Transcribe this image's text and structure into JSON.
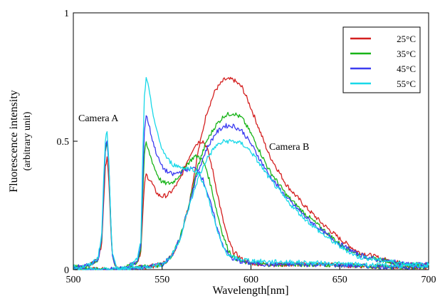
{
  "chart_data": {
    "type": "line",
    "title": "",
    "xlabel": "Wavelength[nm]",
    "ylabel": "Fluorescence intensity",
    "ylabel_sub": "(arbitrary unit)",
    "xlim": [
      500,
      700
    ],
    "ylim": [
      0,
      1
    ],
    "x_ticks": [
      500,
      550,
      600,
      650,
      700
    ],
    "x_tick_labels": [
      "500",
      "550",
      "600",
      "650",
      "700"
    ],
    "y_ticks": [
      0,
      0.5,
      1
    ],
    "y_tick_labels": [
      "0",
      "0.5",
      "1"
    ],
    "grid": false,
    "legend_position": "top-right",
    "annotations": [
      {
        "text": "Camera A",
        "x": 515,
        "y": 0.58
      },
      {
        "text": "Camera B",
        "x": 617,
        "y": 0.47
      }
    ],
    "series": [
      {
        "name": "25°C",
        "color": "#d42020",
        "camera_a": {
          "x": [
            500,
            505,
            510,
            514,
            516,
            517,
            518,
            519,
            520,
            521,
            522,
            524,
            526,
            528,
            530,
            533,
            536,
            538,
            539,
            540,
            541,
            542,
            544,
            546,
            548,
            550,
            553,
            556,
            560,
            564,
            568,
            571,
            573,
            575,
            578,
            581,
            584,
            587,
            590,
            595,
            600,
            610,
            620,
            640,
            660,
            680,
            700
          ],
          "y": [
            0.01,
            0.01,
            0.02,
            0.04,
            0.1,
            0.25,
            0.4,
            0.44,
            0.35,
            0.18,
            0.05,
            0.01,
            0.0,
            0.0,
            0.01,
            0.02,
            0.03,
            0.07,
            0.2,
            0.33,
            0.37,
            0.36,
            0.34,
            0.31,
            0.29,
            0.285,
            0.29,
            0.31,
            0.35,
            0.42,
            0.48,
            0.5,
            0.5,
            0.48,
            0.4,
            0.3,
            0.2,
            0.12,
            0.07,
            0.04,
            0.025,
            0.02,
            0.02,
            0.02,
            0.015,
            0.01,
            0.01
          ]
        },
        "camera_b": {
          "x": [
            500,
            520,
            540,
            550,
            555,
            560,
            565,
            570,
            575,
            580,
            585,
            590,
            595,
            600,
            605,
            610,
            620,
            630,
            640,
            650,
            660,
            670,
            680,
            690,
            700
          ],
          "y": [
            0.0,
            0.0,
            0.01,
            0.02,
            0.05,
            0.12,
            0.25,
            0.45,
            0.61,
            0.7,
            0.74,
            0.74,
            0.71,
            0.63,
            0.54,
            0.45,
            0.33,
            0.25,
            0.18,
            0.12,
            0.07,
            0.05,
            0.03,
            0.02,
            0.02
          ]
        }
      },
      {
        "name": "35°C",
        "color": "#18b418",
        "camera_a": {
          "x": [
            500,
            505,
            510,
            514,
            516,
            517,
            518,
            519,
            520,
            521,
            522,
            524,
            526,
            528,
            530,
            533,
            536,
            538,
            539,
            540,
            541,
            542,
            544,
            546,
            548,
            550,
            553,
            556,
            560,
            564,
            568,
            571,
            573,
            575,
            578,
            581,
            584,
            587,
            590,
            595,
            600,
            610,
            620,
            640,
            660,
            680,
            700
          ],
          "y": [
            0.01,
            0.01,
            0.02,
            0.04,
            0.12,
            0.3,
            0.46,
            0.5,
            0.4,
            0.2,
            0.05,
            0.01,
            0.0,
            0.0,
            0.01,
            0.02,
            0.03,
            0.08,
            0.28,
            0.45,
            0.49,
            0.47,
            0.43,
            0.39,
            0.36,
            0.34,
            0.335,
            0.34,
            0.37,
            0.41,
            0.44,
            0.44,
            0.42,
            0.39,
            0.31,
            0.22,
            0.14,
            0.08,
            0.05,
            0.03,
            0.025,
            0.02,
            0.02,
            0.02,
            0.015,
            0.01,
            0.01
          ]
        },
        "camera_b": {
          "x": [
            500,
            520,
            540,
            550,
            555,
            560,
            565,
            570,
            575,
            580,
            585,
            590,
            595,
            600,
            605,
            610,
            620,
            630,
            640,
            650,
            660,
            670,
            680,
            690,
            700
          ],
          "y": [
            0.0,
            0.0,
            0.01,
            0.02,
            0.05,
            0.12,
            0.25,
            0.4,
            0.5,
            0.56,
            0.6,
            0.61,
            0.59,
            0.53,
            0.46,
            0.39,
            0.29,
            0.22,
            0.16,
            0.1,
            0.06,
            0.04,
            0.03,
            0.02,
            0.02
          ]
        }
      },
      {
        "name": "45°C",
        "color": "#3c3cf0",
        "camera_a": {
          "x": [
            500,
            505,
            510,
            514,
            516,
            517,
            518,
            519,
            520,
            521,
            522,
            524,
            526,
            528,
            530,
            533,
            536,
            538,
            539,
            540,
            541,
            542,
            544,
            546,
            548,
            550,
            553,
            556,
            560,
            564,
            568,
            571,
            573,
            575,
            578,
            581,
            584,
            587,
            590,
            595,
            600,
            610,
            620,
            640,
            660,
            680,
            700
          ],
          "y": [
            0.01,
            0.01,
            0.02,
            0.04,
            0.12,
            0.3,
            0.47,
            0.51,
            0.41,
            0.2,
            0.05,
            0.01,
            0.0,
            0.0,
            0.01,
            0.02,
            0.03,
            0.09,
            0.33,
            0.54,
            0.6,
            0.58,
            0.52,
            0.47,
            0.43,
            0.4,
            0.38,
            0.37,
            0.38,
            0.39,
            0.395,
            0.38,
            0.35,
            0.31,
            0.24,
            0.16,
            0.1,
            0.06,
            0.04,
            0.03,
            0.025,
            0.02,
            0.02,
            0.02,
            0.015,
            0.01,
            0.01
          ]
        },
        "camera_b": {
          "x": [
            500,
            520,
            540,
            550,
            555,
            560,
            565,
            570,
            575,
            580,
            585,
            590,
            595,
            600,
            605,
            610,
            620,
            630,
            640,
            650,
            660,
            670,
            680,
            690,
            700
          ],
          "y": [
            0.0,
            0.0,
            0.01,
            0.02,
            0.05,
            0.12,
            0.25,
            0.38,
            0.47,
            0.53,
            0.56,
            0.56,
            0.54,
            0.49,
            0.43,
            0.37,
            0.28,
            0.21,
            0.15,
            0.1,
            0.06,
            0.04,
            0.03,
            0.02,
            0.02
          ]
        }
      },
      {
        "name": "55°C",
        "color": "#18d8e8",
        "camera_a": {
          "x": [
            500,
            505,
            510,
            514,
            516,
            517,
            518,
            519,
            520,
            521,
            522,
            524,
            526,
            528,
            530,
            533,
            536,
            538,
            539,
            540,
            541,
            542,
            544,
            546,
            548,
            550,
            553,
            556,
            560,
            564,
            568,
            571,
            573,
            575,
            578,
            581,
            584,
            587,
            590,
            595,
            600,
            610,
            620,
            640,
            660,
            680,
            700
          ],
          "y": [
            0.01,
            0.01,
            0.02,
            0.05,
            0.14,
            0.34,
            0.5,
            0.54,
            0.43,
            0.21,
            0.06,
            0.01,
            0.0,
            0.0,
            0.01,
            0.02,
            0.04,
            0.11,
            0.42,
            0.68,
            0.74,
            0.72,
            0.64,
            0.57,
            0.51,
            0.47,
            0.43,
            0.41,
            0.4,
            0.395,
            0.39,
            0.37,
            0.34,
            0.3,
            0.23,
            0.15,
            0.09,
            0.06,
            0.045,
            0.04,
            0.035,
            0.03,
            0.03,
            0.025,
            0.02,
            0.015,
            0.015
          ]
        },
        "camera_b": {
          "x": [
            500,
            520,
            540,
            550,
            555,
            560,
            565,
            570,
            575,
            580,
            585,
            590,
            595,
            600,
            605,
            610,
            620,
            630,
            640,
            650,
            660,
            670,
            680,
            690,
            700
          ],
          "y": [
            0.0,
            0.0,
            0.01,
            0.02,
            0.05,
            0.12,
            0.24,
            0.35,
            0.43,
            0.48,
            0.5,
            0.5,
            0.49,
            0.46,
            0.41,
            0.36,
            0.27,
            0.2,
            0.14,
            0.09,
            0.05,
            0.04,
            0.03,
            0.02,
            0.02
          ]
        }
      }
    ]
  }
}
